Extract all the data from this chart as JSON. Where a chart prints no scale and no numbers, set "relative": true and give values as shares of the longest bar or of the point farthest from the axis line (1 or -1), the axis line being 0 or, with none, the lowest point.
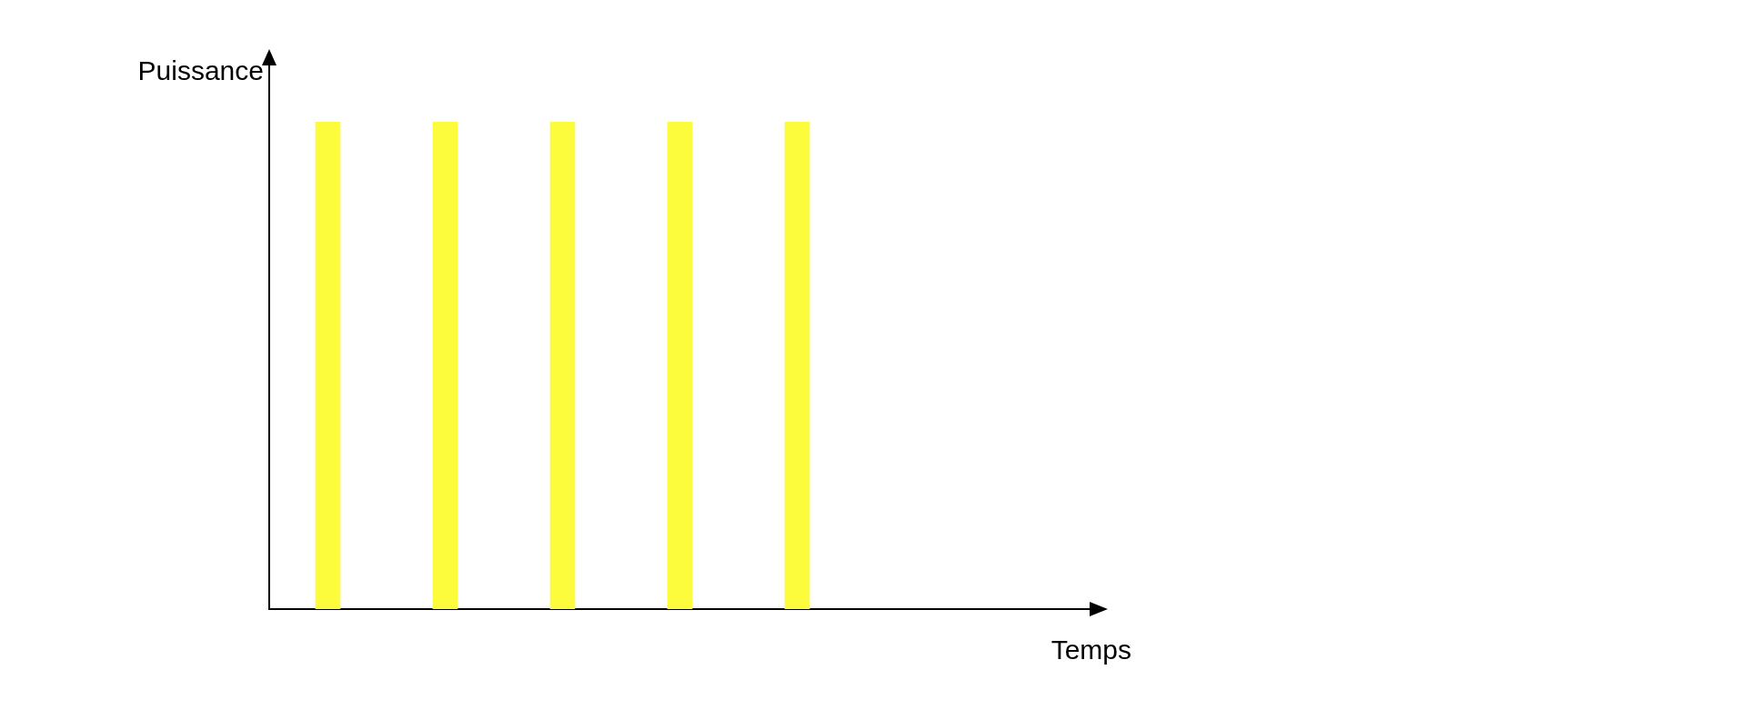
{
  "chart_data": {
    "type": "bar",
    "annotations": [
      "Temps"
    ],
    "ylabel": "Puissance",
    "relative": true,
    "categories": [
      null,
      null,
      null,
      null,
      null
    ],
    "values": [
      1,
      1,
      1,
      1,
      1
    ],
    "color": "#fcfc3c"
  }
}
